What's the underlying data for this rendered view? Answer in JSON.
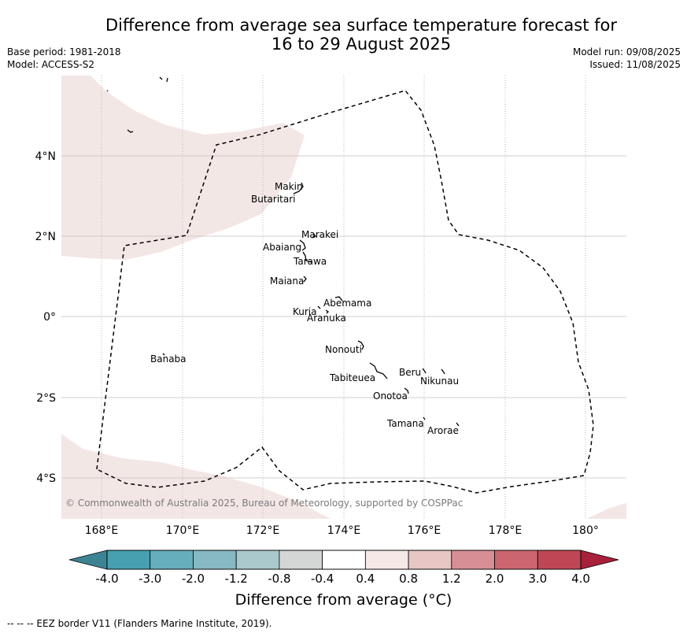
{
  "title_line1": "Difference from average sea surface temperature forecast for",
  "title_line2": "16 to 29 August 2025",
  "base_period": "Base period: 1981-2018",
  "model": "Model: ACCESS-S2",
  "model_run": "Model run: 09/08/2025",
  "issued": "Issued: 11/08/2025",
  "lon_labels": [
    "168°E",
    "170°E",
    "172°E",
    "174°E",
    "176°E",
    "178°E",
    "180°"
  ],
  "lat_labels": [
    "4°N",
    "2°N",
    "0°",
    "2°S",
    "4°S"
  ],
  "places": [
    "Makin",
    "Butaritari",
    "Marakei",
    "Abaiang",
    "Tarawa",
    "Maiana",
    "Abemama",
    "Kuria",
    "Aranuka",
    "Nonouti",
    "Banaba",
    "Beru",
    "Nikunau",
    "Tabiteuea",
    "Onotoa",
    "Tamana",
    "Arorae"
  ],
  "copyright": "© Commonwealth of Australia 2025, Bureau of Meteorology, supported by COSPPac",
  "colorbar": {
    "title": "Difference from average (°C)",
    "ticks": [
      "-4.0",
      "-3.0",
      "-2.0",
      "-1.2",
      "-0.8",
      "-0.4",
      "0.4",
      "0.8",
      "1.2",
      "2.0",
      "3.0",
      "4.0"
    ],
    "colors": [
      "#46a0b0",
      "#66aebb",
      "#86b9c2",
      "#a9c9cc",
      "#d4d6d6",
      "#ffffff",
      "#f5e8e6",
      "#e7c6c3",
      "#d88e95",
      "#cb6670",
      "#bf4755"
    ],
    "under_color": "#3c8494",
    "over_color": "#a8203a"
  },
  "map_fill_color": "#f3e7e5",
  "footnote": "-- -- -- EEZ border V11 (Flanders Marine Institute, 2019)."
}
